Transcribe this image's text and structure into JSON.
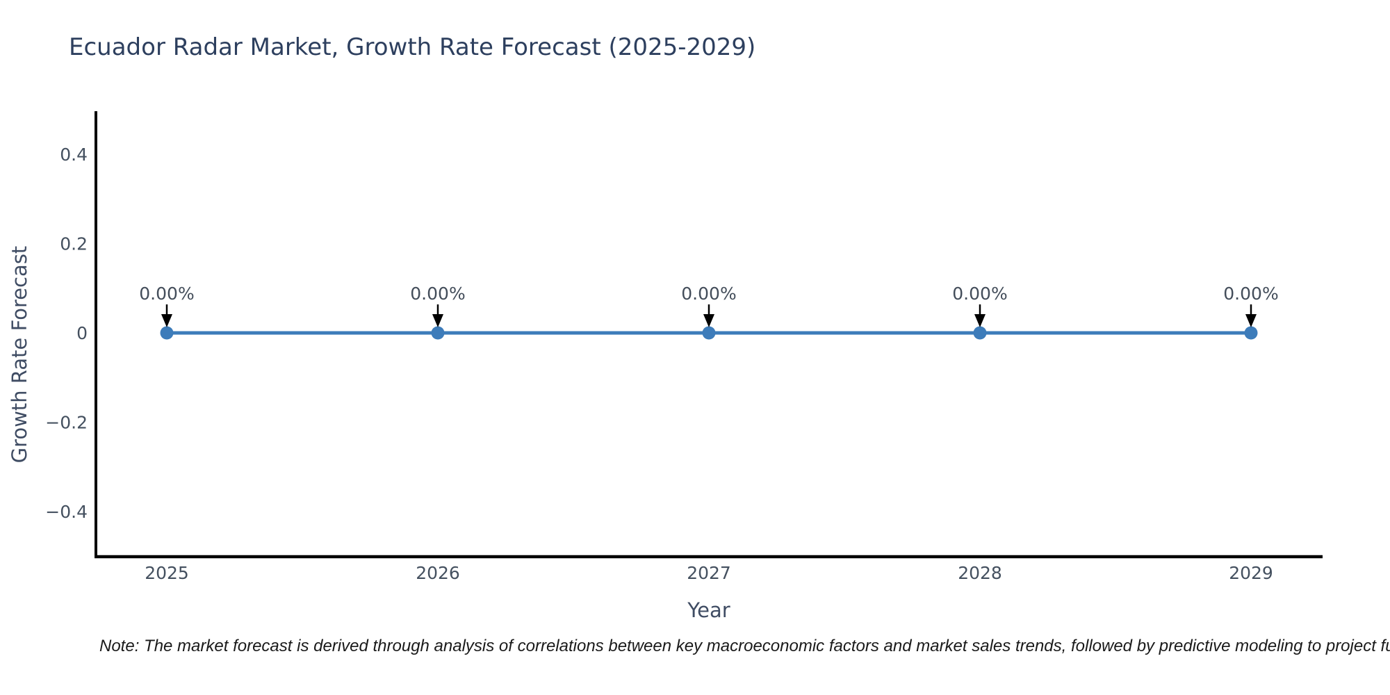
{
  "chart": {
    "title": "Ecuador Radar Market, Growth Rate Forecast (2025-2029)",
    "note": "Note: The market forecast is derived through analysis of correlations between key macroeconomic factors and market sales trends, followed by predictive modeling to project future sa",
    "colors": {
      "background": "#ffffff",
      "line": "#3d7cba",
      "marker": "#3d7cba",
      "axis_line": "#000000",
      "title_text": "#2d3f5e",
      "tick_text": "#44505f",
      "axis_title_text": "#3f4c63",
      "annotation_text": "#434d5a",
      "arrow": "#000000",
      "note_text": "#1a1a1a"
    }
  },
  "chart_data": {
    "type": "line",
    "title": "Ecuador Radar Market, Growth Rate Forecast (2025-2029)",
    "categories": [
      "2025",
      "2026",
      "2027",
      "2028",
      "2029"
    ],
    "series": [
      {
        "name": "Growth Rate Forecast",
        "values": [
          0,
          0,
          0,
          0,
          0
        ]
      }
    ],
    "data_labels": [
      "0.00%",
      "0.00%",
      "0.00%",
      "0.00%",
      "0.00%"
    ],
    "xlabel": "Year",
    "ylabel": "Growth Rate Forecast",
    "ylim": [
      -0.5,
      0.5
    ],
    "yticks": [
      {
        "label": "0.4",
        "value": 0.4
      },
      {
        "label": "0.2",
        "value": 0.2
      },
      {
        "label": "0",
        "value": 0
      },
      {
        "label": "−0.2",
        "value": -0.2
      },
      {
        "label": "−0.4",
        "value": -0.4
      }
    ],
    "grid": false,
    "legend": false,
    "annotation_style": "down-arrow-to-point"
  }
}
